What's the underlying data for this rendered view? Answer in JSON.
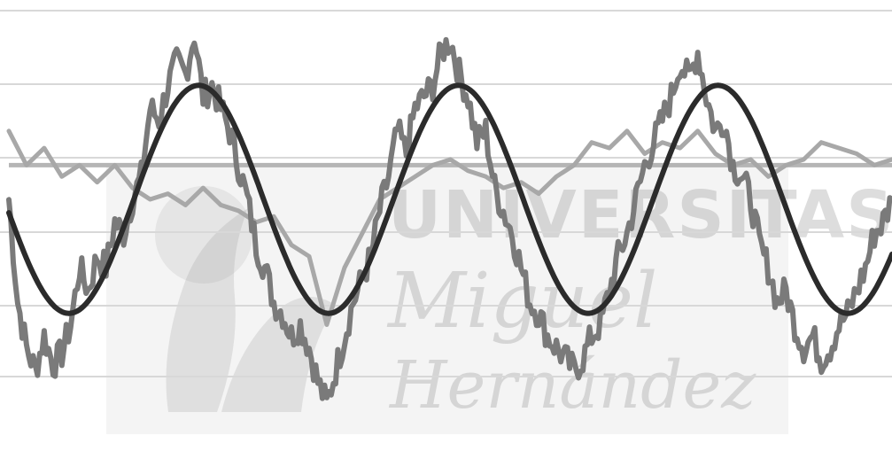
{
  "watermark": {
    "line1": "UNIVERSITAS",
    "line2": "Miguel",
    "line3": "Hernández"
  },
  "chart_data": {
    "type": "line",
    "title": "",
    "xlabel": "",
    "ylabel": "",
    "grid": true,
    "xlim": [
      0,
      100
    ],
    "ylim": [
      -1.5,
      1.5
    ],
    "baseline": 0.3,
    "series": [
      {
        "role": "sine-fit",
        "color": "#2b2b2b",
        "amplitude": 1.0,
        "period": 29.4,
        "peaks_x": [
          21.5,
          50.8,
          78.5
        ],
        "troughs_x": [
          7.5,
          35.8,
          64.5,
          92.5
        ]
      },
      {
        "role": "noisy-signal-dark-gray",
        "color": "#7a7a7a",
        "x": [
          0,
          1,
          2,
          3,
          4,
          5,
          6,
          7,
          8,
          9,
          10,
          11,
          12,
          13,
          14,
          15,
          16,
          17,
          18,
          19,
          20,
          21,
          22,
          23,
          24,
          25,
          26,
          27,
          28,
          29,
          30,
          31,
          32,
          33,
          34,
          35,
          36,
          37,
          38,
          39,
          40,
          41,
          42,
          43,
          44,
          45,
          46,
          47,
          48,
          49,
          50,
          51,
          52,
          53,
          54,
          55,
          56,
          57,
          58,
          59,
          60,
          61,
          62,
          63,
          64,
          65,
          66,
          67,
          68,
          69,
          70,
          71,
          72,
          73,
          74,
          75,
          76,
          77,
          78,
          79,
          80,
          81,
          82,
          83,
          84,
          85,
          86,
          87,
          88,
          89,
          90,
          91,
          92,
          93,
          94,
          95,
          96,
          97,
          98,
          99,
          100
        ],
        "y": [
          0.0,
          -0.9,
          -1.3,
          -1.5,
          -1.2,
          -1.45,
          -1.35,
          -1.1,
          -0.6,
          -0.8,
          -0.5,
          -0.6,
          -0.2,
          -0.3,
          0.0,
          0.2,
          0.8,
          0.7,
          1.0,
          1.2,
          1.1,
          1.45,
          0.9,
          1.0,
          0.8,
          0.6,
          0.3,
          0.0,
          -0.4,
          -0.6,
          -0.9,
          -1.0,
          -1.2,
          -1.1,
          -1.3,
          -1.6,
          -1.8,
          -1.5,
          -1.2,
          -0.9,
          -0.7,
          -0.5,
          -0.1,
          0.2,
          0.6,
          0.4,
          0.8,
          0.9,
          1.0,
          1.3,
          1.4,
          1.1,
          0.9,
          0.5,
          0.6,
          0.1,
          -0.1,
          -0.3,
          -0.6,
          -0.9,
          -1.0,
          -1.2,
          -1.3,
          -1.4,
          -1.5,
          -1.4,
          -1.2,
          -1.1,
          -0.8,
          -0.5,
          -0.3,
          0.0,
          0.3,
          0.5,
          0.7,
          0.9,
          1.2,
          1.05,
          1.3,
          0.9,
          0.6,
          0.7,
          0.3,
          0.2,
          0.0,
          -0.4,
          -0.6,
          -0.9,
          -0.8,
          -1.1,
          -1.3,
          -1.2,
          -1.4,
          -1.3,
          -1.1,
          -1.0,
          -0.8,
          -0.6,
          -0.3,
          -0.2,
          0.0
        ]
      },
      {
        "role": "flatter-signal-light-gray",
        "color": "#a8a8a8",
        "x": [
          0,
          2,
          4,
          6,
          8,
          10,
          12,
          14,
          16,
          18,
          20,
          22,
          24,
          26,
          28,
          30,
          32,
          34,
          36,
          38,
          40,
          42,
          44,
          46,
          48,
          50,
          52,
          54,
          56,
          58,
          60,
          62,
          64,
          66,
          68,
          70,
          72,
          74,
          76,
          78,
          80,
          82,
          84,
          86,
          88,
          90,
          92,
          94,
          96,
          98,
          100
        ],
        "y": [
          0.6,
          0.3,
          0.45,
          0.2,
          0.3,
          0.15,
          0.3,
          0.1,
          0.0,
          0.05,
          -0.05,
          0.1,
          -0.05,
          -0.1,
          -0.2,
          -0.15,
          -0.4,
          -0.5,
          -1.1,
          -0.6,
          -0.3,
          0.0,
          0.1,
          0.2,
          0.3,
          0.35,
          0.25,
          0.2,
          0.1,
          0.15,
          0.05,
          0.2,
          0.3,
          0.5,
          0.45,
          0.6,
          0.4,
          0.5,
          0.45,
          0.6,
          0.4,
          0.3,
          0.35,
          0.2,
          0.3,
          0.35,
          0.5,
          0.45,
          0.4,
          0.3,
          0.35
        ]
      }
    ]
  }
}
